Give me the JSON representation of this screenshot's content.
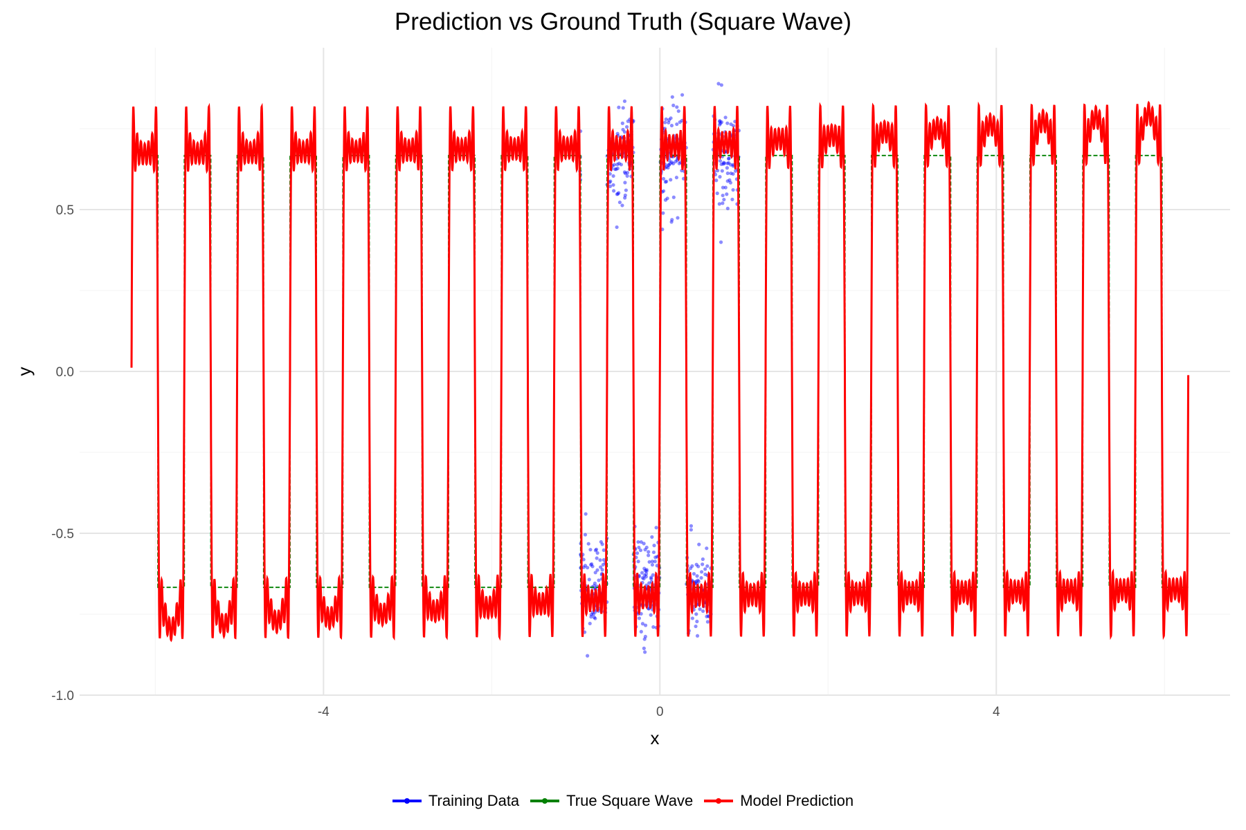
{
  "chart_data": {
    "type": "line",
    "title": "Prediction vs Ground Truth (Square Wave)",
    "xlabel": "x",
    "ylabel": "y",
    "xlim": [
      -6.9,
      6.78
    ],
    "ylim": [
      -1.0,
      1.0
    ],
    "x_ticks": [
      {
        "v": -4,
        "label": "-4"
      },
      {
        "v": 0,
        "label": "0"
      },
      {
        "v": 4,
        "label": "4"
      }
    ],
    "x_minor": [
      -6,
      -2,
      2,
      6
    ],
    "y_ticks": [
      {
        "v": -1.0,
        "label": "-1.0"
      },
      {
        "v": -0.5,
        "label": "-0.5"
      },
      {
        "v": 0.0,
        "label": "0.0"
      },
      {
        "v": 0.5,
        "label": "0.5"
      }
    ],
    "y_minor": [
      -0.75,
      -0.25,
      0.25,
      0.75
    ],
    "grid": true,
    "legend_position": "bottom",
    "series": [
      {
        "name": "Training Data",
        "kind": "scatter",
        "color": "#0000ff",
        "x_range": [
          -0.95,
          0.95
        ],
        "count": 600,
        "levels": [
          0.667,
          -0.667
        ],
        "frequency": 10,
        "noise_sd": 0.08
      },
      {
        "name": "True Square Wave",
        "kind": "line",
        "style": "dashed",
        "color": "#008000",
        "x_range": [
          -6.283,
          6.283
        ],
        "amplitude": 0.667,
        "frequency": 10
      },
      {
        "name": "Model Prediction",
        "kind": "line",
        "color": "#ff0000",
        "x_range": [
          -6.283,
          6.283
        ],
        "amplitude": 0.667,
        "frequency": 10,
        "harmonics": 13,
        "drift": 0.018
      }
    ]
  }
}
